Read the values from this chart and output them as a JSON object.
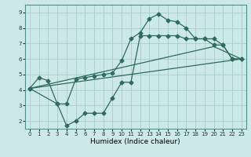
{
  "xlabel": "Humidex (Indice chaleur)",
  "bg_color": "#cce8e8",
  "grid_color": "#a8cccc",
  "line_color": "#2d6b5e",
  "xlim": [
    -0.5,
    23.5
  ],
  "ylim": [
    1.5,
    9.5
  ],
  "xticks": [
    0,
    1,
    2,
    3,
    4,
    5,
    6,
    7,
    8,
    9,
    10,
    11,
    12,
    13,
    14,
    15,
    16,
    17,
    18,
    19,
    20,
    21,
    22,
    23
  ],
  "yticks": [
    2,
    3,
    4,
    5,
    6,
    7,
    8,
    9
  ],
  "line1_x": [
    0,
    1,
    2,
    3,
    4,
    5,
    6,
    7,
    8,
    9,
    10,
    11,
    12,
    13,
    14,
    15,
    16,
    17,
    18,
    19,
    20,
    21,
    22,
    23
  ],
  "line1_y": [
    4.1,
    4.8,
    4.6,
    3.1,
    3.1,
    4.7,
    4.8,
    4.9,
    5.0,
    5.1,
    5.9,
    7.3,
    7.7,
    8.6,
    8.9,
    8.5,
    8.4,
    8.0,
    7.3,
    7.3,
    6.9,
    6.9,
    6.0,
    6.0
  ],
  "line2_x": [
    0,
    3,
    4,
    5,
    6,
    7,
    8,
    9,
    10,
    11,
    12,
    13,
    14,
    15,
    16,
    17,
    18,
    19,
    20,
    21,
    22,
    23
  ],
  "line2_y": [
    4.1,
    3.1,
    1.7,
    2.0,
    2.5,
    2.5,
    2.5,
    3.5,
    4.5,
    4.5,
    7.5,
    7.5,
    7.5,
    7.5,
    7.5,
    7.3,
    7.3,
    7.3,
    7.3,
    6.9,
    6.0,
    6.0
  ],
  "line3_x": [
    0,
    23
  ],
  "line3_y": [
    4.1,
    6.0
  ],
  "line4_x": [
    0,
    20,
    23
  ],
  "line4_y": [
    4.1,
    6.8,
    6.0
  ]
}
